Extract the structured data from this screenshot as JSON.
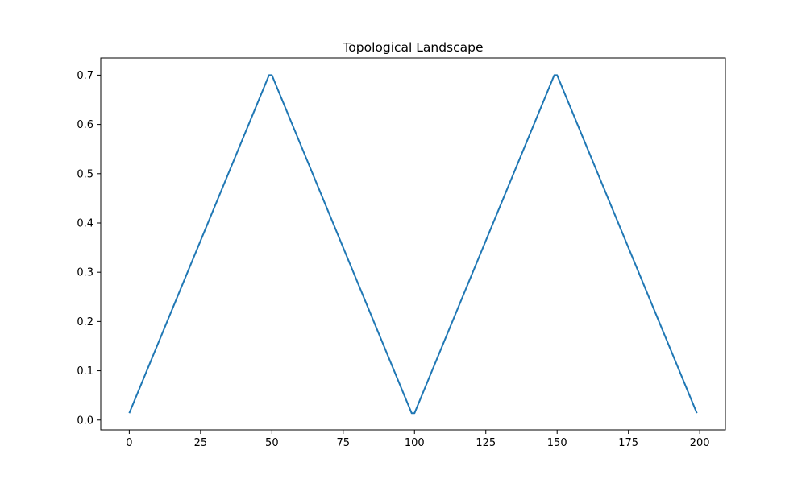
{
  "chart_data": {
    "type": "line",
    "title": "Topological Landscape",
    "xlabel": "",
    "ylabel": "",
    "xlim": [
      -10,
      209
    ],
    "ylim": [
      -0.02,
      0.735
    ],
    "grid": false,
    "x_ticks": [
      0,
      25,
      50,
      75,
      100,
      125,
      150,
      175,
      200
    ],
    "x_tick_labels": [
      "0",
      "25",
      "50",
      "75",
      "100",
      "125",
      "150",
      "175",
      "200"
    ],
    "y_ticks": [
      0.0,
      0.1,
      0.2,
      0.3,
      0.4,
      0.5,
      0.6,
      0.7
    ],
    "y_tick_labels": [
      "0.0",
      "0.1",
      "0.2",
      "0.3",
      "0.4",
      "0.5",
      "0.6",
      "0.7"
    ],
    "series": [
      {
        "color": "#1f77b4",
        "x": [
          0,
          49,
          50,
          99,
          100,
          149,
          150,
          199
        ],
        "y": [
          0.014,
          0.7,
          0.7,
          0.014,
          0.014,
          0.7,
          0.7,
          0.014
        ]
      }
    ]
  }
}
